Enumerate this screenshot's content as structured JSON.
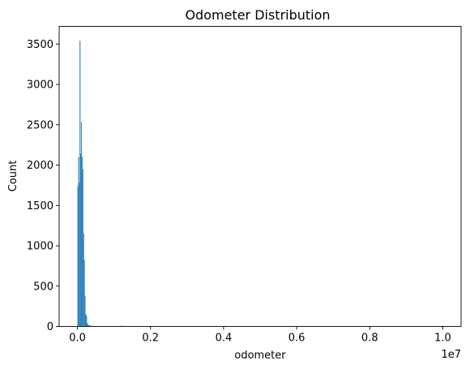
{
  "chart_data": {
    "type": "bar",
    "title": "Odometer Distribution",
    "xlabel": "odometer",
    "ylabel": "Count",
    "x_offset_label": "1e7",
    "xlim": [
      -500000,
      10500000
    ],
    "ylim": [
      0,
      3720
    ],
    "x_ticks": [
      0,
      2000000,
      4000000,
      6000000,
      8000000,
      10000000
    ],
    "x_tick_labels": [
      "0.0",
      "0.2",
      "0.4",
      "0.6",
      "0.8",
      "1.0"
    ],
    "y_ticks": [
      0,
      500,
      1000,
      1500,
      2000,
      2500,
      3000,
      3500
    ],
    "y_tick_labels": [
      "0",
      "500",
      "1000",
      "1500",
      "2000",
      "2500",
      "3000",
      "3500"
    ],
    "grid": false,
    "bar_color": "#1f77b4",
    "bins": [
      {
        "x": 0,
        "count": 1730
      },
      {
        "x": 20000,
        "count": 2100
      },
      {
        "x": 40000,
        "count": 1780
      },
      {
        "x": 60000,
        "count": 3540
      },
      {
        "x": 80000,
        "count": 2140
      },
      {
        "x": 100000,
        "count": 2530
      },
      {
        "x": 120000,
        "count": 2100
      },
      {
        "x": 140000,
        "count": 1950
      },
      {
        "x": 160000,
        "count": 1150
      },
      {
        "x": 180000,
        "count": 820
      },
      {
        "x": 200000,
        "count": 380
      },
      {
        "x": 220000,
        "count": 150
      },
      {
        "x": 240000,
        "count": 130
      },
      {
        "x": 260000,
        "count": 40
      },
      {
        "x": 280000,
        "count": 25
      },
      {
        "x": 300000,
        "count": 15
      },
      {
        "x": 320000,
        "count": 10
      },
      {
        "x": 340000,
        "count": 8
      },
      {
        "x": 360000,
        "count": 6
      },
      {
        "x": 380000,
        "count": 5
      },
      {
        "x": 400000,
        "count": 4
      },
      {
        "x": 440000,
        "count": 3
      },
      {
        "x": 480000,
        "count": 2
      },
      {
        "x": 1200000,
        "count": 8
      },
      {
        "x": 9980000,
        "count": 8
      }
    ],
    "bin_width": 20000
  }
}
